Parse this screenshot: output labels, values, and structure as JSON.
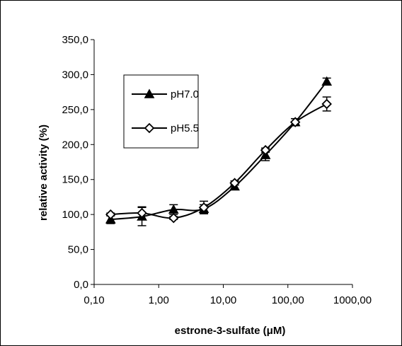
{
  "chart_data": {
    "type": "line",
    "xscale": "log",
    "xlabel": "estrone-3-sulfate (μM)",
    "ylabel": "relative activity (%)",
    "xlim": [
      0.1,
      1000
    ],
    "ylim": [
      0,
      350
    ],
    "xticks": [
      0.1,
      1,
      10,
      100,
      1000
    ],
    "xtick_labels": [
      "0,10",
      "1,00",
      "10,00",
      "100,00",
      "1000,00"
    ],
    "yticks": [
      0,
      50,
      100,
      150,
      200,
      250,
      300,
      350
    ],
    "ytick_labels": [
      "0,0",
      "50,0",
      "100,0",
      "150,0",
      "200,0",
      "250,0",
      "300,0",
      "350,0"
    ],
    "grid": false,
    "legend_position": "upper-left",
    "series": [
      {
        "name": "pH7.0",
        "marker": "filled-triangle",
        "x": [
          0.18,
          0.55,
          1.7,
          5.0,
          15,
          45,
          130,
          400
        ],
        "y": [
          93,
          97,
          107,
          108,
          140,
          185,
          232,
          290
        ],
        "err": [
          6,
          13,
          7,
          6,
          4,
          8,
          5,
          5
        ]
      },
      {
        "name": "pH5.5",
        "marker": "open-diamond",
        "x": [
          0.18,
          0.55,
          1.7,
          5.0,
          15,
          45,
          130,
          400
        ],
        "y": [
          100,
          102,
          95,
          110,
          145,
          192,
          232,
          258
        ],
        "err": [
          2,
          9,
          2,
          9,
          3,
          3,
          5,
          10
        ]
      }
    ]
  }
}
